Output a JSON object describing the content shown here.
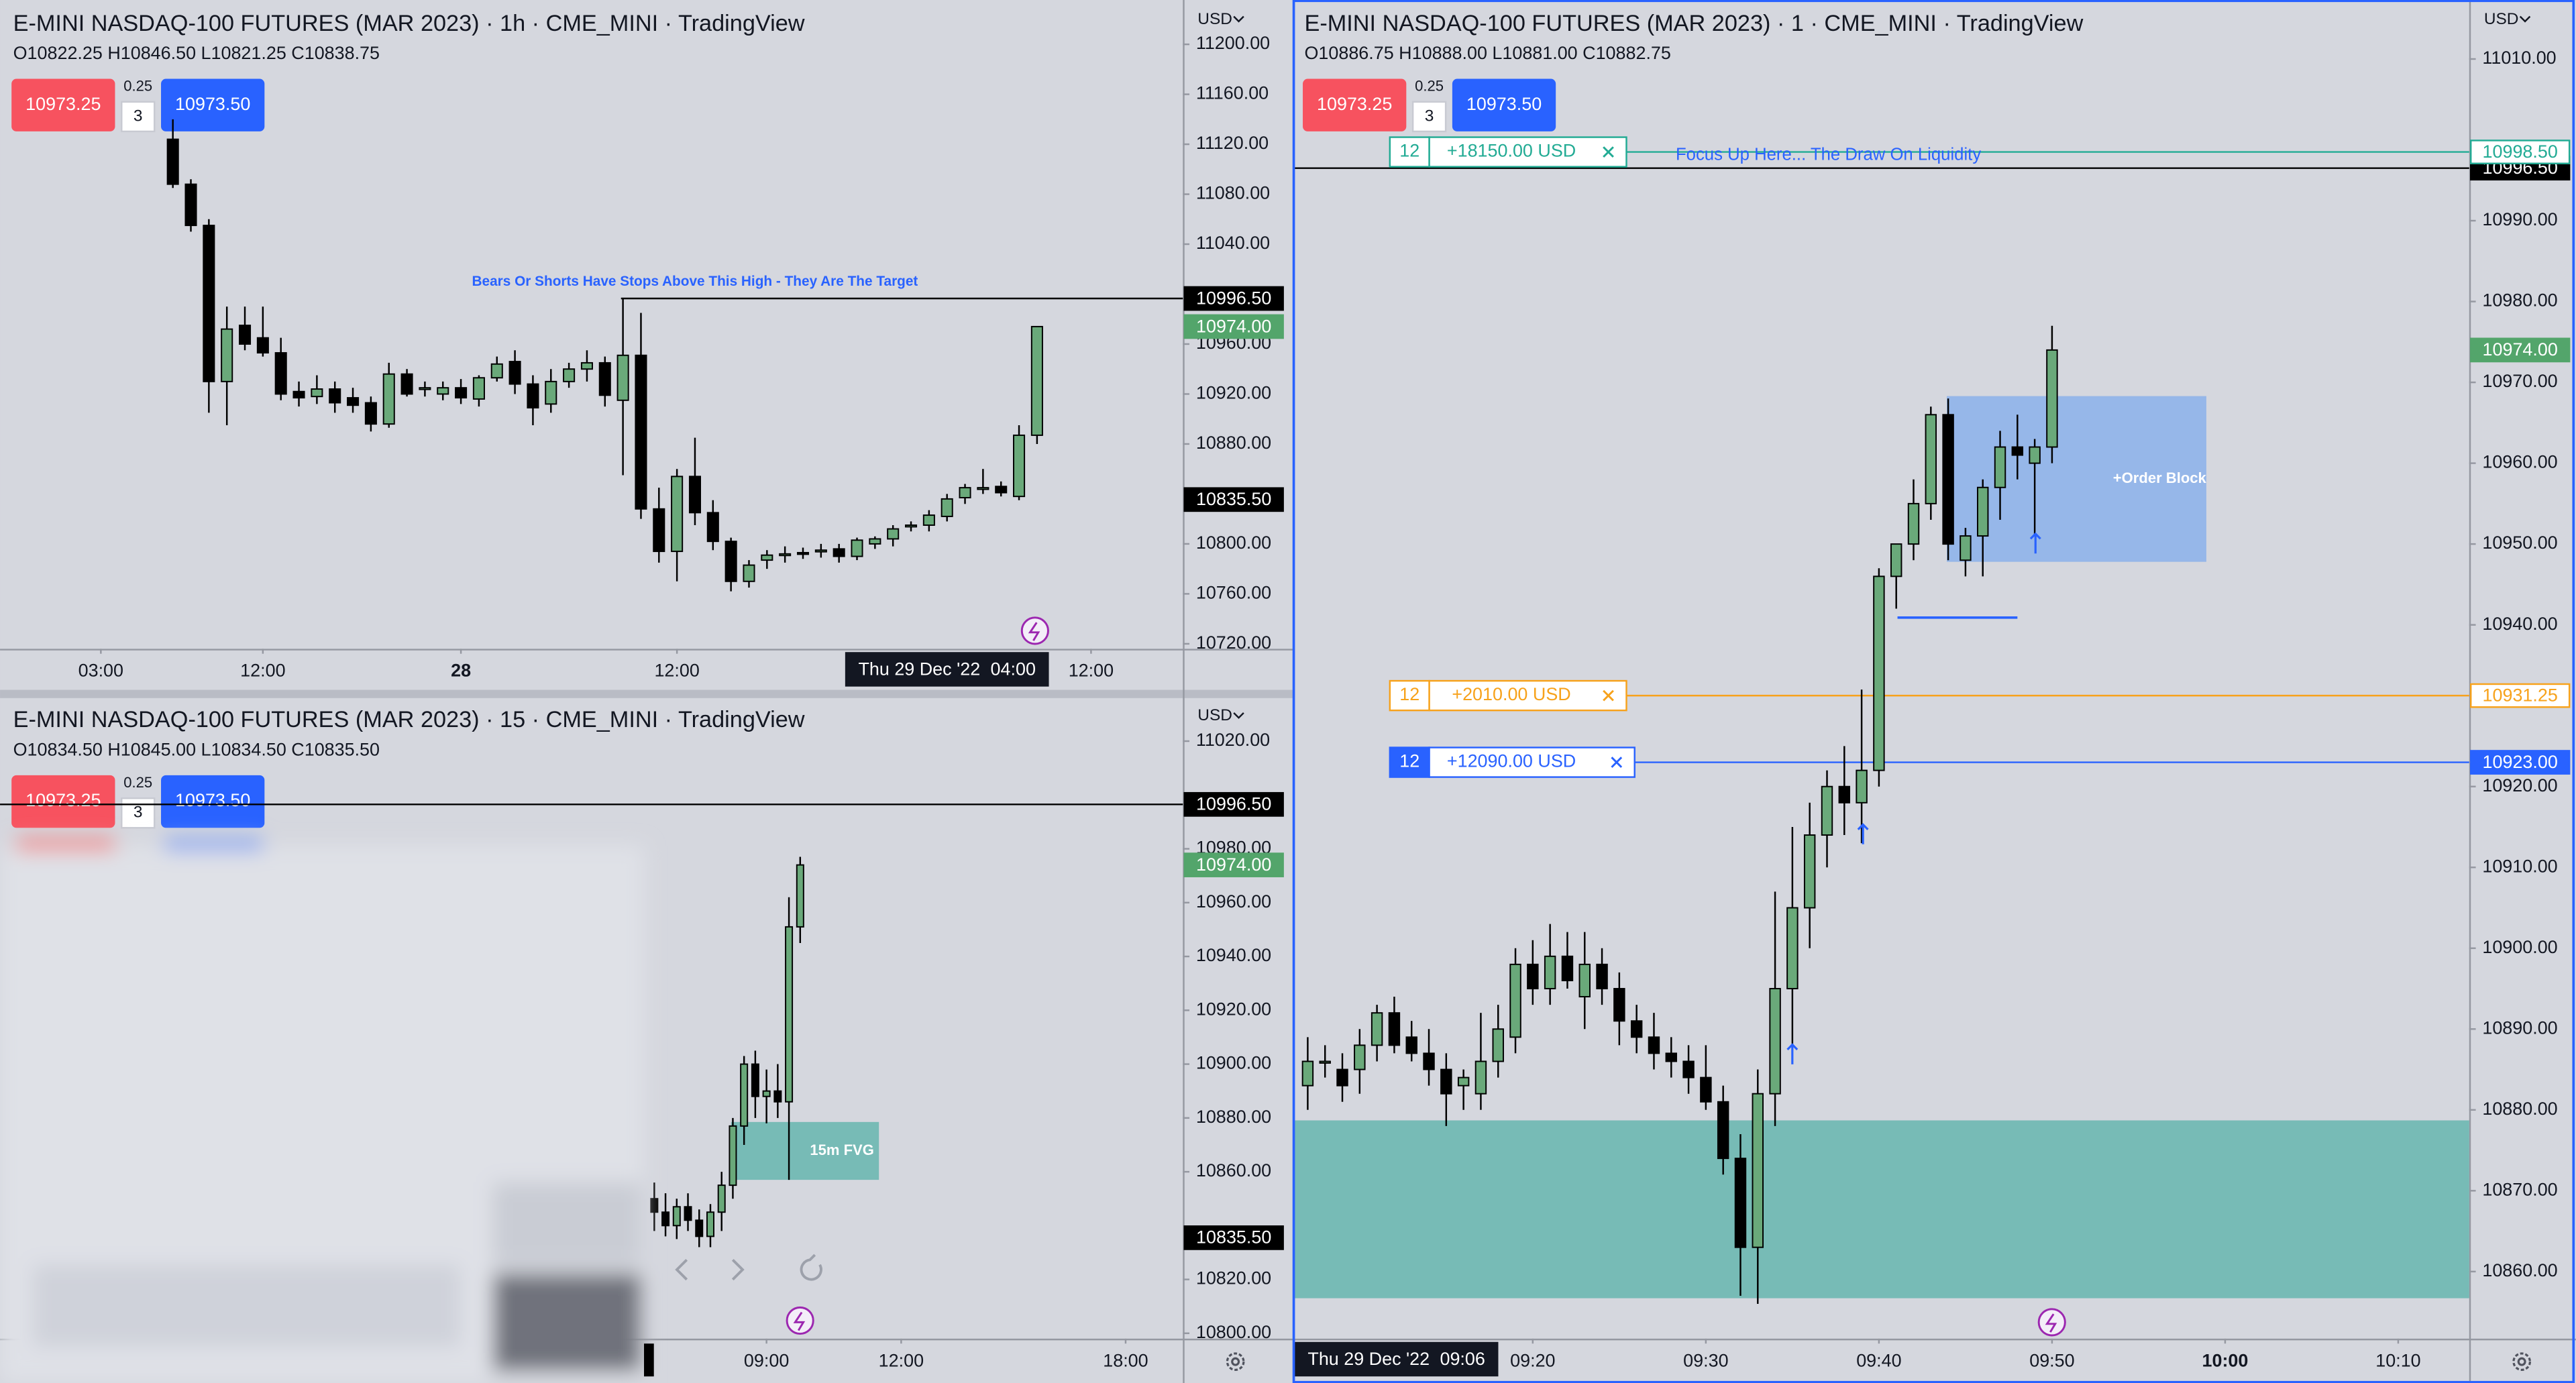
{
  "chart_data": [
    {
      "type": "candlestick",
      "title": "E-MINI NASDAQ-100 FUTURES (MAR 2023) · 1h · CME_MINI · TradingView",
      "ohlc": "O10822.25 H10846.50 L10821.25 C10838.75",
      "currency": "USD",
      "bid": "10973.25",
      "spread": "0.25",
      "quantity": "3",
      "ask": "10973.50",
      "up_color": "#6aa97a",
      "down_color": "#000000",
      "open": [
        11124,
        11088,
        11055,
        10930,
        10975,
        10965,
        10953,
        10922,
        10918,
        10924,
        10917,
        10913,
        10896,
        10936,
        10925,
        10920,
        10925,
        10916,
        10933,
        10946,
        10928,
        10912,
        10930,
        10940,
        10945,
        10915,
        10951,
        10828,
        10794,
        10854,
        10825,
        10802,
        10770,
        10787,
        10792,
        10793,
        10795,
        10796,
        10790,
        10800,
        10804,
        10814,
        10815,
        10822,
        10837,
        10845,
        10846,
        10838,
        10887
      ],
      "high": [
        11140,
        11092,
        11060,
        10990,
        10990,
        10990,
        10965,
        10930,
        10935,
        10930,
        10925,
        10918,
        10945,
        10940,
        10930,
        10930,
        10932,
        10935,
        10950,
        10955,
        10935,
        10940,
        10945,
        10955,
        10950,
        10996.5,
        10985,
        10845,
        10860,
        10885,
        10835,
        10805,
        10787,
        10795,
        10798,
        10797,
        10800,
        10800,
        10805,
        10806,
        10815,
        10818,
        10827,
        10840,
        10848,
        10860,
        10850,
        10895,
        10974
      ],
      "low": [
        11085,
        11050,
        10905,
        10895,
        10955,
        10950,
        10915,
        10910,
        10912,
        10905,
        10905,
        10890,
        10893,
        10918,
        10918,
        10915,
        10912,
        10910,
        10930,
        10920,
        10895,
        10905,
        10925,
        10930,
        10910,
        10855,
        10820,
        10785,
        10770,
        10815,
        10795,
        10762,
        10765,
        10780,
        10785,
        10788,
        10789,
        10785,
        10787,
        10796,
        10798,
        10810,
        10810,
        10818,
        10832,
        10840,
        10838,
        10835,
        10880
      ],
      "close": [
        11088,
        11055,
        10930,
        10972,
        10960,
        10953,
        10920,
        10917,
        10924,
        10913,
        10911,
        10896,
        10936,
        10920,
        10925,
        10925,
        10917,
        10933,
        10944,
        10928,
        10909,
        10930,
        10940,
        10945,
        10919,
        10951,
        10828,
        10794,
        10854,
        10825,
        10802,
        10770,
        10783,
        10791,
        10792,
        10792,
        10795,
        10790,
        10803,
        10804,
        10812,
        10815,
        10823,
        10836,
        10845,
        10845,
        10841,
        10887,
        10974
      ],
      "xlim": [
        -9.6,
        56.1
      ],
      "xticks": [
        {
          "value": -4,
          "label": "03:00"
        },
        {
          "value": 5,
          "label": "12:00"
        },
        {
          "value": 16,
          "label": "28",
          "bold": true
        },
        {
          "value": 28,
          "label": "12:00"
        },
        {
          "value": 51,
          "label": "12:00"
        }
      ],
      "crosshair": {
        "date": "Thu 29 Dec '22",
        "tick": {
          "value": 43,
          "label": "04:00"
        }
      },
      "ylim": [
        10716,
        11235.5
      ],
      "yticks": [
        {
          "value": 11200,
          "label": "11200.00"
        },
        {
          "value": 11160,
          "label": "11160.00"
        },
        {
          "value": 11120,
          "label": "11120.00"
        },
        {
          "value": 11080,
          "label": "11080.00"
        },
        {
          "value": 11040,
          "label": "11040.00"
        },
        {
          "value": 10960,
          "label": "10960.00"
        },
        {
          "value": 10920,
          "label": "10920.00"
        },
        {
          "value": 10880,
          "label": "10880.00"
        },
        {
          "value": 10800,
          "label": "10800.00"
        },
        {
          "value": 10760,
          "label": "10760.00"
        },
        {
          "value": 10720,
          "label": "10720.00"
        }
      ],
      "levels": [
        {
          "value": 10996.5,
          "color": "#000000",
          "note": "Bears Or Shorts Have Stops Above This High - They Are The Target"
        }
      ],
      "price_labels": [
        {
          "value": 10996.5,
          "label": "10996.50",
          "color": "#000000"
        },
        {
          "value": 10974,
          "label": "10974.00",
          "color": "#53a56b"
        },
        {
          "value": 10835.5,
          "label": "10835.50",
          "color": "#000000"
        }
      ]
    },
    {
      "type": "candlestick",
      "title": "E-MINI NASDAQ-100 FUTURES (MAR 2023) · 15 · CME_MINI · TradingView",
      "ohlc": "O10834.50 H10845.00 L10834.50 C10835.50",
      "currency": "USD",
      "bid": "10973.25",
      "spread": "0.25",
      "quantity": "3",
      "ask": "10973.50",
      "up_color": "#6aa97a",
      "down_color": "#000000",
      "open": [
        10850,
        10845,
        10840,
        10847,
        10842,
        10836,
        10845,
        10855,
        10877,
        10900,
        10888,
        10890,
        10886,
        10951
      ],
      "high": [
        10856,
        10852,
        10850,
        10852,
        10846,
        10848,
        10860,
        10880,
        10903,
        10905,
        10898,
        10900,
        10962,
        10977
      ],
      "low": [
        10838,
        10836,
        10835,
        10838,
        10832,
        10832,
        10838,
        10850,
        10870,
        10880,
        10878,
        10880,
        10857,
        10945
      ],
      "close": [
        10845,
        10840,
        10847,
        10842,
        10836,
        10845,
        10855,
        10877,
        10900,
        10888,
        10890,
        10886,
        10951,
        10974
      ],
      "xlim": [
        -58.3,
        47.1
      ],
      "xticks": [
        {
          "value": 10,
          "label": "09:00"
        },
        {
          "value": 22,
          "label": "12:00"
        },
        {
          "value": 42,
          "label": "18:00"
        }
      ],
      "ylim": [
        10798,
        11036
      ],
      "yticks": [
        {
          "value": 11020,
          "label": "11020.00"
        },
        {
          "value": 10980,
          "label": "10980.00"
        },
        {
          "value": 10960,
          "label": "10960.00"
        },
        {
          "value": 10940,
          "label": "10940.00"
        },
        {
          "value": 10920,
          "label": "10920.00"
        },
        {
          "value": 10900,
          "label": "10900.00"
        },
        {
          "value": 10880,
          "label": "10880.00"
        },
        {
          "value": 10860,
          "label": "10860.00"
        },
        {
          "value": 10820,
          "label": "10820.00"
        },
        {
          "value": 10800,
          "label": "10800.00"
        }
      ],
      "zones": [
        {
          "label": "15m FVG",
          "low": 10857,
          "high": 10878.5,
          "color": "#6db8b1"
        }
      ],
      "levels": [
        {
          "value": 10996.5,
          "color": "#000000"
        }
      ],
      "price_labels": [
        {
          "value": 10996.5,
          "label": "10996.50",
          "color": "#000000"
        },
        {
          "value": 10974,
          "label": "10974.00",
          "color": "#53a56b"
        },
        {
          "value": 10835.5,
          "label": "10835.50",
          "color": "#000000"
        }
      ]
    },
    {
      "type": "candlestick",
      "title": "E-MINI NASDAQ-100 FUTURES (MAR 2023) · 1 · CME_MINI · TradingView",
      "ohlc": "O10886.75 H10888.00 L10881.00 C10882.75",
      "currency": "USD",
      "bid": "10973.25",
      "spread": "0.25",
      "quantity": "3",
      "ask": "10973.50",
      "up_color": "#6aa97a",
      "down_color": "#000000",
      "open": [
        10883,
        10886,
        10885,
        10885,
        10888,
        10892,
        10889,
        10887,
        10885,
        10883,
        10882,
        10886,
        10889,
        10898,
        10895,
        10899,
        10894,
        10898,
        10895,
        10891,
        10889,
        10887,
        10886,
        10884,
        10881,
        10874,
        10863,
        10882,
        10895,
        10905,
        10914,
        10920,
        10918,
        10922,
        10946,
        10950,
        10955,
        10966,
        10948,
        10951,
        10957,
        10962,
        10960,
        10962
      ],
      "high": [
        10889,
        10888,
        10887,
        10890,
        10893,
        10894,
        10891,
        10890,
        10887,
        10885,
        10892,
        10893,
        10900,
        10901,
        10903,
        10902,
        10902,
        10900,
        10897,
        10893,
        10892,
        10889,
        10888,
        10888,
        10883,
        10877,
        10885,
        10907,
        10915,
        10918,
        10922,
        10925,
        10932,
        10947,
        10950,
        10958,
        10967,
        10968,
        10952,
        10958,
        10964,
        10966,
        10963,
        10977
      ],
      "low": [
        10880,
        10884,
        10881,
        10882,
        10886,
        10887,
        10886,
        10883,
        10878,
        10880,
        10880,
        10884,
        10887,
        10893,
        10893,
        10895,
        10890,
        10893,
        10888,
        10887,
        10885,
        10884,
        10882,
        10880,
        10872,
        10857,
        10856,
        10878,
        10888,
        10900,
        10910,
        10914,
        10913,
        10920,
        10942,
        10948,
        10953,
        10948,
        10946,
        10946,
        10953,
        10958,
        10951,
        10960
      ],
      "close": [
        10886,
        10886,
        10883,
        10888,
        10892,
        10888,
        10887,
        10885,
        10882,
        10884,
        10886,
        10890,
        10898,
        10895,
        10899,
        10896,
        10898,
        10895,
        10891,
        10889,
        10887,
        10886,
        10884,
        10881,
        10874,
        10863,
        10882,
        10895,
        10905,
        10914,
        10920,
        10918,
        10922,
        10946,
        10950,
        10955,
        10966,
        10950,
        10951,
        10957,
        10962,
        10961,
        10962,
        10974
      ],
      "xlim": [
        -0.76,
        67.1
      ],
      "xticks": [
        {
          "value": 13,
          "label": "09:20"
        },
        {
          "value": 23,
          "label": "09:30"
        },
        {
          "value": 33,
          "label": "09:40"
        },
        {
          "value": 43,
          "label": "09:50"
        },
        {
          "value": 53,
          "label": "10:00",
          "bold": true
        },
        {
          "value": 63,
          "label": "10:10"
        }
      ],
      "crosshair": {
        "date": "Thu 29 Dec '22",
        "tick": {
          "value": -1,
          "label": "09:06"
        }
      },
      "ylim": [
        10851.7,
        11017.3
      ],
      "yticks": [
        {
          "value": 11010,
          "label": "11010.00"
        },
        {
          "value": 10990,
          "label": "10990.00"
        },
        {
          "value": 10980,
          "label": "10980.00"
        },
        {
          "value": 10970,
          "label": "10970.00"
        },
        {
          "value": 10960,
          "label": "10960.00"
        },
        {
          "value": 10950,
          "label": "10950.00"
        },
        {
          "value": 10940,
          "label": "10940.00"
        },
        {
          "value": 10920,
          "label": "10920.00"
        },
        {
          "value": 10910,
          "label": "10910.00"
        },
        {
          "value": 10900,
          "label": "10900.00"
        },
        {
          "value": 10890,
          "label": "10890.00"
        },
        {
          "value": 10880,
          "label": "10880.00"
        },
        {
          "value": 10870,
          "label": "10870.00"
        },
        {
          "value": 10860,
          "label": "10860.00"
        }
      ],
      "zones": [
        {
          "label": "+Order Block",
          "low": 10947.8,
          "high": 10968.3,
          "color": "#8fb4ea"
        },
        {
          "low": 10856.7,
          "high": 10878.7,
          "color": "#6db8b1"
        }
      ],
      "levels": [
        {
          "value": 10996.5,
          "color": "#000000"
        },
        {
          "value": 10940.9,
          "color": "#2962ff"
        }
      ],
      "orders": [
        {
          "quantity": 12,
          "pnl": "+18150.00 USD",
          "value": 10998.5,
          "label": "10998.50",
          "color": "#22ab94",
          "filled": false,
          "note": "Focus Up Here... The Draw On Liquidity"
        },
        {
          "quantity": 12,
          "pnl": "+2010.00 USD",
          "value": 10931.25,
          "label": "10931.25",
          "color": "#f7a21b",
          "filled": false
        },
        {
          "quantity": 12,
          "pnl": "+12090.00 USD",
          "value": 10923,
          "label": "10923.00",
          "color": "#2962ff",
          "filled": true
        }
      ],
      "price_labels": [
        {
          "value": 10996.5,
          "label": "10996.50",
          "color": "#000000"
        },
        {
          "value": 10974,
          "label": "10974.00",
          "color": "#53a56b"
        }
      ]
    }
  ]
}
